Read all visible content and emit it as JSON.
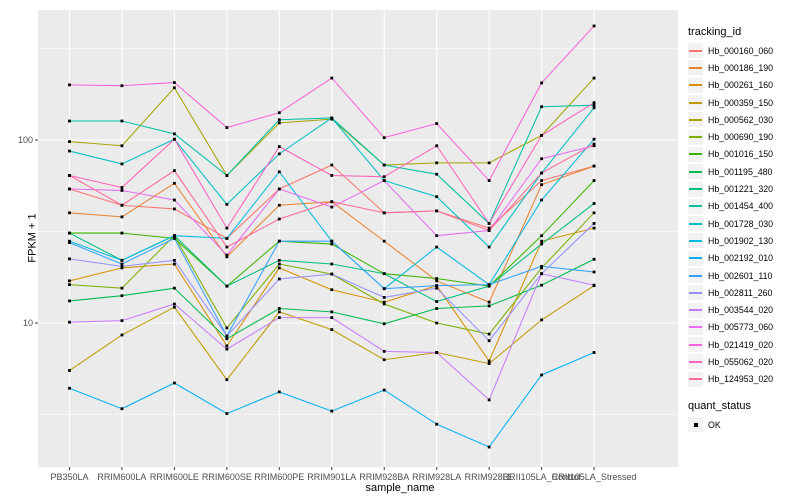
{
  "figure": {
    "panel_bg": "#EBEBEB",
    "grid_color": "#FFFFFF",
    "tick_color": "#333333",
    "tick_text_color": "#4D4D4D",
    "point_color": "#000000",
    "legend_key_bg": "#F2F2F2"
  },
  "chart_data": {
    "type": "line",
    "title": "",
    "xlabel": "sample_name",
    "ylabel": "FPKM + 1",
    "y_scale": "log10",
    "y_ticks": [
      10,
      100
    ],
    "y_minor_ticks": [
      3.162,
      31.62,
      316.2
    ],
    "ylim": [
      1.6,
      513
    ],
    "grid": true,
    "legend_position": "right",
    "categories": [
      "PB350LA",
      "RRIM600LA",
      "RRIM600LE",
      "RRIM600SE",
      "RRIM600PE",
      "RRIM901LA",
      "RRIM928BA",
      "RRIM928LA",
      "RRIM928LE",
      "RRII105LA_Control",
      "RRII105LA_Stressed"
    ],
    "series": [
      {
        "name": "Hb_000160_060",
        "color": "#F8766D",
        "values": [
          54,
          44,
          42,
          29,
          54,
          73,
          40,
          41,
          33,
          60,
          72
        ]
      },
      {
        "name": "Hb_000186_190",
        "color": "#EA8331",
        "values": [
          40,
          38,
          58,
          23,
          44,
          46,
          28,
          17,
          13,
          57,
          72
        ]
      },
      {
        "name": "Hb_000261_160",
        "color": "#D89000",
        "values": [
          17,
          20,
          21,
          7.5,
          20,
          15.2,
          13,
          16,
          6.2,
          28,
          33
        ]
      },
      {
        "name": "Hb_000359_150",
        "color": "#C09B00",
        "values": [
          5.5,
          8.6,
          12.2,
          4.9,
          11.5,
          9.2,
          6.3,
          6.9,
          6.0,
          10.4,
          16
        ]
      },
      {
        "name": "Hb_000562_030",
        "color": "#A3A500",
        "values": [
          98,
          93,
          193,
          64,
          124,
          130,
          73,
          75,
          75,
          106,
          218
        ]
      },
      {
        "name": "Hb_000690_190",
        "color": "#7CAE00",
        "values": [
          16.2,
          15.5,
          30,
          9.4,
          21,
          18.5,
          12.7,
          10,
          8.7,
          20,
          40
        ]
      },
      {
        "name": "Hb_001016_150",
        "color": "#39B600",
        "values": [
          31,
          31,
          29,
          15.9,
          28,
          27,
          18.6,
          17.5,
          15.9,
          30,
          60
        ]
      },
      {
        "name": "Hb_001195_480",
        "color": "#00BB4E",
        "values": [
          13.2,
          14.1,
          15.5,
          8.2,
          12,
          11.5,
          9.9,
          12,
          12.4,
          16.1,
          22.3
        ]
      },
      {
        "name": "Hb_001221_320",
        "color": "#00BF7D",
        "values": [
          31,
          22,
          30,
          15.9,
          22,
          21,
          18.6,
          13.1,
          15.9,
          27,
          45
        ]
      },
      {
        "name": "Hb_001454_400",
        "color": "#00C1A3",
        "values": [
          127,
          127,
          108,
          64,
          129,
          132,
          73,
          65,
          35,
          152,
          155
        ]
      },
      {
        "name": "Hb_001728_030",
        "color": "#00BFC4",
        "values": [
          87,
          74,
          101,
          44.5,
          84,
          132,
          60,
          49,
          26,
          66,
          150
        ]
      },
      {
        "name": "Hb_001902_130",
        "color": "#00BAE0",
        "values": [
          28,
          22,
          30,
          29,
          67,
          28,
          15.4,
          26,
          16.2,
          47,
          101
        ]
      },
      {
        "name": "Hb_002192_010",
        "color": "#00B0F6",
        "values": [
          4.4,
          3.4,
          4.7,
          3.2,
          4.2,
          3.3,
          4.3,
          2.8,
          2.1,
          5.2,
          6.9
        ]
      },
      {
        "name": "Hb_002601_110",
        "color": "#35A2FF",
        "values": [
          27.5,
          21,
          29,
          8.5,
          28,
          28,
          15.4,
          16,
          16.2,
          20.4,
          19
        ]
      },
      {
        "name": "Hb_002811_260",
        "color": "#9590FF",
        "values": [
          22.4,
          20.4,
          22,
          8.5,
          17.4,
          18.5,
          13.8,
          15.5,
          8.0,
          18.6,
          35
        ]
      },
      {
        "name": "Hb_003544_020",
        "color": "#C77CFF",
        "values": [
          10.1,
          10.3,
          12.7,
          7.2,
          10.7,
          10.7,
          7.0,
          6.9,
          3.8,
          18.6,
          16.1
        ]
      },
      {
        "name": "Hb_005773_060",
        "color": "#E76BF3",
        "values": [
          54,
          53,
          47,
          23.5,
          54,
          43,
          60,
          30,
          32,
          79,
          93
        ]
      },
      {
        "name": "Hb_021419_020",
        "color": "#FA62DB",
        "values": [
          200,
          198,
          206,
          117,
          141,
          218,
          103,
          123,
          60,
          205,
          420
        ]
      },
      {
        "name": "Hb_055062_020",
        "color": "#FF62BC",
        "values": [
          64,
          55,
          101,
          33,
          92,
          64,
          63,
          93,
          35,
          106,
          160
        ]
      },
      {
        "name": "Hb_124953_020",
        "color": "#FF6A98",
        "values": [
          64,
          44,
          68,
          26,
          37,
          46,
          40,
          41,
          32,
          66,
          95
        ]
      }
    ],
    "legend": {
      "title": "tracking_id"
    },
    "quant_legend": {
      "title": "quant_status",
      "items": [
        {
          "label": "OK",
          "marker": "black-square"
        }
      ]
    }
  }
}
